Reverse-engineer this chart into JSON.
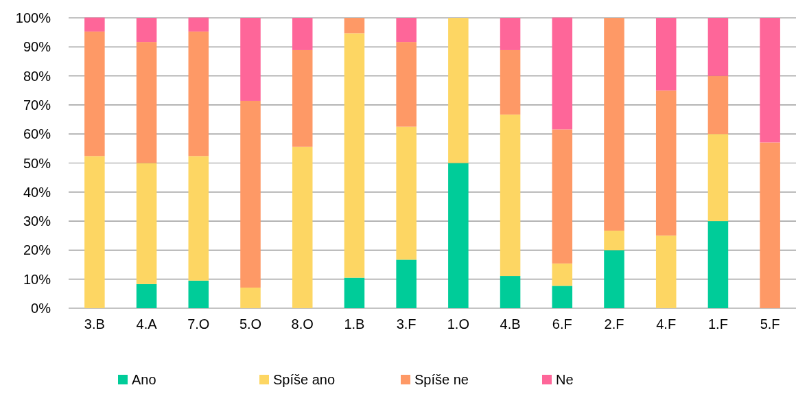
{
  "chart_data": {
    "type": "bar",
    "stacked": true,
    "categories": [
      "3.B",
      "4.A",
      "7.O",
      "5.O",
      "8.O",
      "1.B",
      "3.F",
      "1.O",
      "4.B",
      "6.F",
      "2.F",
      "4.F",
      "1.F",
      "5.F"
    ],
    "series": [
      {
        "name": "Ano",
        "color": "#00cc99",
        "values": [
          0,
          8.3,
          9.5,
          0,
          0,
          10.5,
          16.7,
          50,
          11.1,
          7.7,
          20,
          0,
          30,
          0
        ]
      },
      {
        "name": "Spíše ano",
        "color": "#fdd663",
        "values": [
          52.4,
          41.7,
          42.9,
          7.1,
          55.6,
          84.2,
          45.8,
          50,
          55.6,
          7.7,
          6.7,
          25,
          30,
          0
        ]
      },
      {
        "name": "Spíše ne",
        "color": "#fe9966",
        "values": [
          42.9,
          41.7,
          42.9,
          64.3,
          33.3,
          5.3,
          29.2,
          0,
          22.2,
          46.2,
          73.3,
          50,
          20,
          57.1
        ]
      },
      {
        "name": "Ne",
        "color": "#fe6699",
        "values": [
          4.8,
          8.3,
          4.8,
          28.6,
          11.1,
          0,
          8.3,
          0,
          11.1,
          38.5,
          0,
          25,
          20,
          42.9
        ]
      }
    ],
    "ylim": [
      0,
      100
    ],
    "yticks": [
      {
        "value": 0,
        "label": "0%"
      },
      {
        "value": 10,
        "label": "10%"
      },
      {
        "value": 20,
        "label": "20%"
      },
      {
        "value": 30,
        "label": "30%"
      },
      {
        "value": 40,
        "label": "40%"
      },
      {
        "value": 50,
        "label": "50%"
      },
      {
        "value": 60,
        "label": "60%"
      },
      {
        "value": 70,
        "label": "70%"
      },
      {
        "value": 80,
        "label": "80%"
      },
      {
        "value": 90,
        "label": "90%"
      },
      {
        "value": 100,
        "label": "100%"
      }
    ],
    "grid": "y",
    "legend": "bottom"
  }
}
